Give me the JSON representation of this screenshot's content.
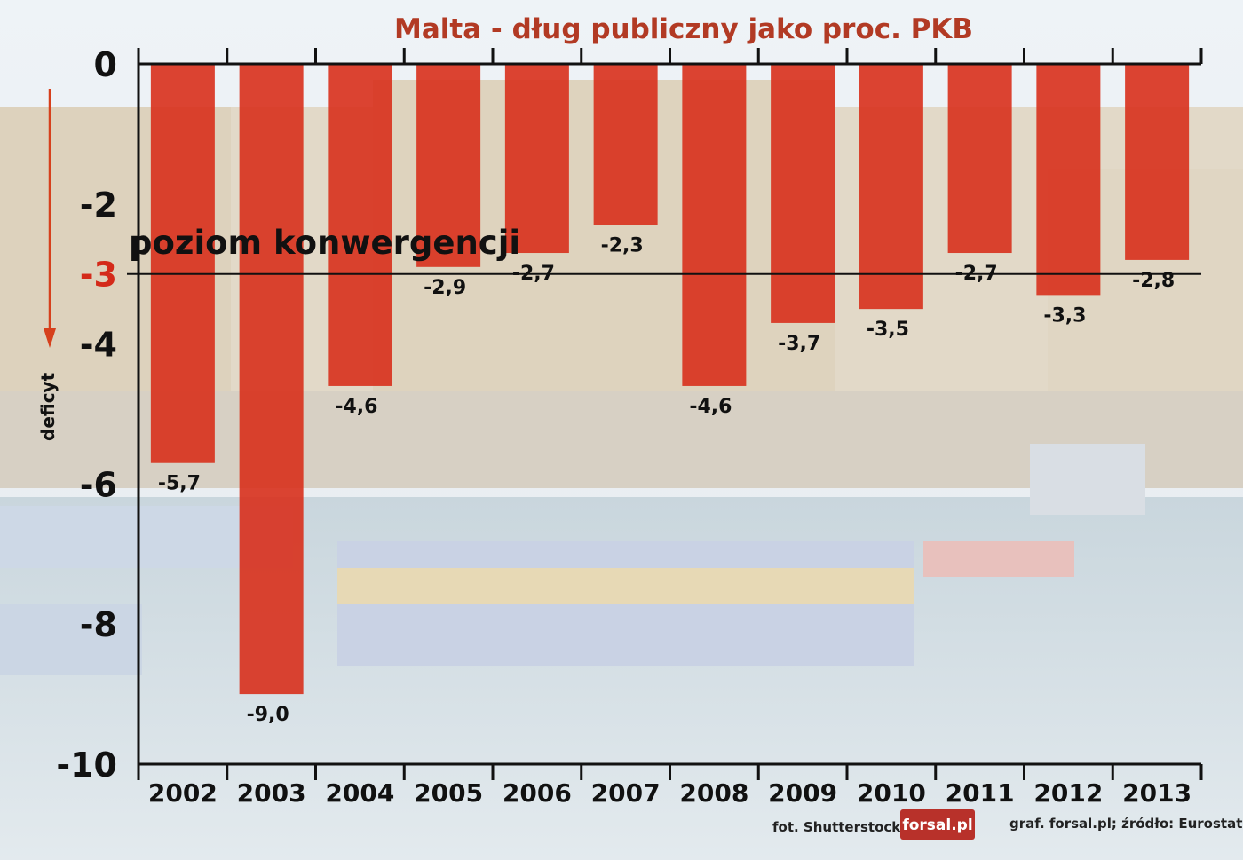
{
  "colors": {
    "bar": "#d8301c",
    "title": "#b23a24",
    "threshold_tick": "#d42a1a",
    "axis": "#111111",
    "logo_bg": "#b8312a"
  },
  "chart_data": {
    "type": "bar",
    "title": "Malta - dług publiczny jako proc. PKB",
    "ylabel": "deficyt",
    "xlabel": "",
    "categories": [
      "2002",
      "2003",
      "2004",
      "2005",
      "2006",
      "2007",
      "2008",
      "2009",
      "2010",
      "2011",
      "2012",
      "2013"
    ],
    "values": [
      -5.7,
      -9.0,
      -4.6,
      -2.9,
      -2.7,
      -2.3,
      -4.6,
      -3.7,
      -3.5,
      -2.7,
      -3.3,
      -2.8
    ],
    "value_labels": [
      "-5,7",
      "-9,0",
      "-4,6",
      "-2,9",
      "-2,7",
      "-2,3",
      "-4,6",
      "-3,7",
      "-3,5",
      "-2,7",
      "-3,3",
      "-2,8"
    ],
    "ylim": [
      -10,
      0
    ],
    "yticks": [
      0,
      -2,
      -3,
      -4,
      -6,
      -8,
      -10
    ],
    "ytick_labels": [
      "0",
      "-2",
      "-3",
      "-4",
      "-6",
      "-8",
      "-10"
    ],
    "threshold": {
      "value": -3,
      "label": "poziom konwergencji"
    },
    "grid": false,
    "legend": "none"
  },
  "credits": {
    "photo": "fot. Shutterstock",
    "logo": "forsal.pl",
    "source": "graf. forsal.pl;  źródło: Eurostat"
  }
}
